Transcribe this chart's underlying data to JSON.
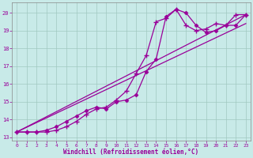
{
  "xlabel": "Windchill (Refroidissement éolien,°C)",
  "bg_color": "#c8eae8",
  "line_color": "#990099",
  "grid_color": "#a0c8c0",
  "xlim": [
    -0.5,
    23.5
  ],
  "ylim": [
    12.8,
    20.6
  ],
  "xticks": [
    0,
    1,
    2,
    3,
    4,
    5,
    6,
    7,
    8,
    9,
    10,
    11,
    12,
    13,
    14,
    15,
    16,
    17,
    18,
    19,
    20,
    21,
    22,
    23
  ],
  "yticks": [
    13,
    14,
    15,
    16,
    17,
    18,
    19,
    20
  ],
  "series1_x": [
    0,
    1,
    2,
    3,
    4,
    5,
    6,
    7,
    8,
    9,
    10,
    11,
    12,
    13,
    14,
    15,
    16,
    17,
    18,
    19,
    20,
    21,
    22,
    23
  ],
  "series1_y": [
    13.3,
    13.3,
    13.3,
    13.3,
    13.4,
    13.6,
    13.9,
    14.3,
    14.6,
    14.7,
    15.1,
    15.6,
    16.6,
    17.6,
    19.5,
    19.7,
    20.2,
    19.3,
    19.0,
    19.1,
    19.4,
    19.3,
    19.9,
    19.9
  ],
  "series2_x": [
    0,
    1,
    2,
    3,
    4,
    5,
    6,
    7,
    8,
    9,
    10,
    11,
    12,
    13,
    14,
    15,
    16,
    17,
    18,
    19,
    20,
    21,
    22,
    23
  ],
  "series2_y": [
    13.3,
    13.3,
    13.3,
    13.4,
    13.6,
    13.9,
    14.2,
    14.5,
    14.7,
    14.6,
    15.0,
    15.1,
    15.4,
    16.7,
    17.4,
    19.8,
    20.2,
    20.0,
    19.3,
    18.9,
    19.0,
    19.3,
    19.3,
    19.9
  ],
  "series3_x": [
    0,
    23
  ],
  "series3_y": [
    13.3,
    19.9
  ],
  "series4_x": [
    0,
    23
  ],
  "series4_y": [
    13.3,
    19.4
  ]
}
